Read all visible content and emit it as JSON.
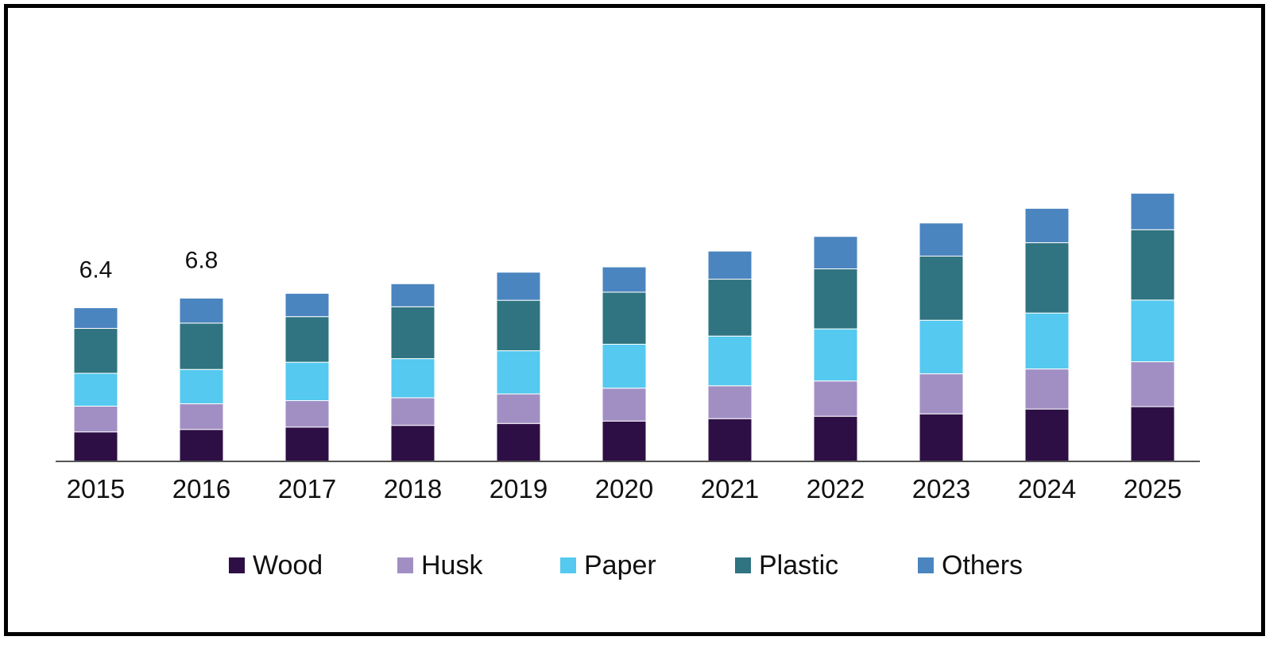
{
  "chart_data": {
    "type": "bar",
    "stacked": true,
    "categories": [
      "2015",
      "2016",
      "2017",
      "2018",
      "2019",
      "2020",
      "2021",
      "2022",
      "2023",
      "2024",
      "2025"
    ],
    "series": [
      {
        "name": "Wood",
        "color": "#2e0f45",
        "values": [
          1.23,
          1.33,
          1.43,
          1.5,
          1.58,
          1.68,
          1.78,
          1.88,
          1.98,
          2.18,
          2.28
        ]
      },
      {
        "name": "Husk",
        "color": "#a18fc4",
        "values": [
          1.07,
          1.07,
          1.1,
          1.15,
          1.23,
          1.37,
          1.37,
          1.47,
          1.67,
          1.67,
          1.87
        ]
      },
      {
        "name": "Paper",
        "color": "#55c9ef",
        "values": [
          1.37,
          1.43,
          1.6,
          1.63,
          1.8,
          1.83,
          2.07,
          2.17,
          2.23,
          2.33,
          2.57
        ]
      },
      {
        "name": "Plastic",
        "color": "#2f7480",
        "values": [
          1.87,
          1.93,
          1.9,
          2.16,
          2.1,
          2.17,
          2.37,
          2.5,
          2.67,
          2.93,
          2.93
        ]
      },
      {
        "name": "Others",
        "color": "#4b85bf",
        "values": [
          0.86,
          1.04,
          0.97,
          0.96,
          1.17,
          1.05,
          1.17,
          1.35,
          1.38,
          1.43,
          1.52
        ]
      }
    ],
    "data_labels": [
      {
        "category": "2015",
        "text": "6.4"
      },
      {
        "category": "2016",
        "text": "6.8"
      }
    ],
    "ylim": [
      0,
      13
    ],
    "grid": false,
    "legend_position": "bottom"
  }
}
